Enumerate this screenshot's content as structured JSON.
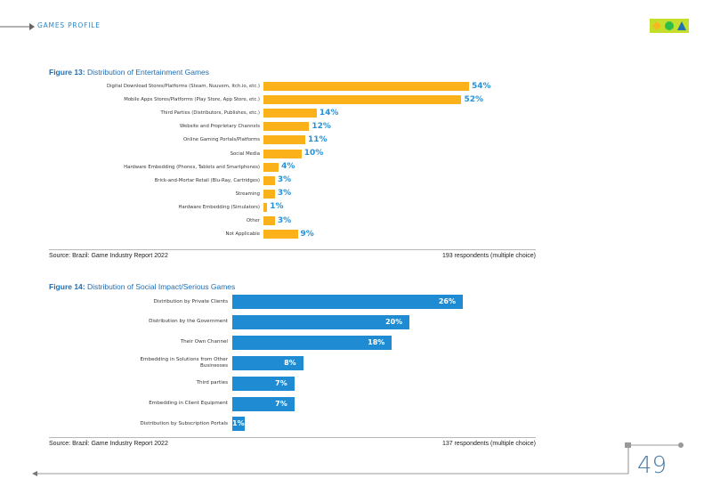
{
  "header": {
    "section_label": "GAMES PROFILE",
    "logo_colors": [
      "#f7b81c",
      "#2dbf4a",
      "#1e6fb5"
    ]
  },
  "figure13": {
    "number": "Figure 13:",
    "title": "Distribution of Entertainment Games",
    "source": "Source: Brazil: Game Industry Report 2022",
    "respondents": "193 respondents (multiple choice)"
  },
  "figure14": {
    "number": "Figure 14:",
    "title": "Distribution of Social Impact/Serious Games",
    "source": "Source: Brazil: Game Industry Report 2022",
    "respondents": "137 respondents (multiple choice)"
  },
  "footer": {
    "page_number": "49"
  },
  "chart_data": [
    {
      "type": "bar",
      "orientation": "horizontal",
      "color": "#fbb21a",
      "categories": [
        "Digital Download Stores/Platforms (Steam, Nuuvem, Itch.io, etc.)",
        "Mobile Apps Stores/Platforms (Play Store, App Store, etc.)",
        "Third Parties (Distributors, Publishes, etc.)",
        "Website and Proprietary Channels",
        "Online Gaming Portals/Platforms",
        "Social Media",
        "Hardware Embedding (Phones, Tablets and Smartphones)",
        "Brick-and-Mortar Retail (Blu-Ray, Cartridges)",
        "Streaming",
        "Hardware Embedding (Simulators)",
        "Other",
        "Not Applicable"
      ],
      "values": [
        54,
        52,
        14,
        12,
        11,
        10,
        4,
        3,
        3,
        1,
        3,
        9
      ],
      "value_labels": [
        "54%",
        "52%",
        "14%",
        "12%",
        "11%",
        "10%",
        "4%",
        "3%",
        "3%",
        "1%",
        "3%",
        "9%"
      ],
      "xlim": [
        0,
        54
      ]
    },
    {
      "type": "bar",
      "orientation": "horizontal",
      "color": "#1f8bd3",
      "categories": [
        "Distribution by Private Clients",
        "Distribution by the Government",
        "Their Own Channel",
        "Embedding in Solutions from Other Businesses",
        "Third parties",
        "Embedding in Client Equipment",
        "Distribution by Subscription Portals"
      ],
      "values": [
        26,
        20,
        18,
        8,
        7,
        7,
        1
      ],
      "value_labels": [
        "26%",
        "20%",
        "18%",
        "8%",
        "7%",
        "7%",
        "1%"
      ],
      "xlim": [
        0,
        26
      ]
    }
  ]
}
